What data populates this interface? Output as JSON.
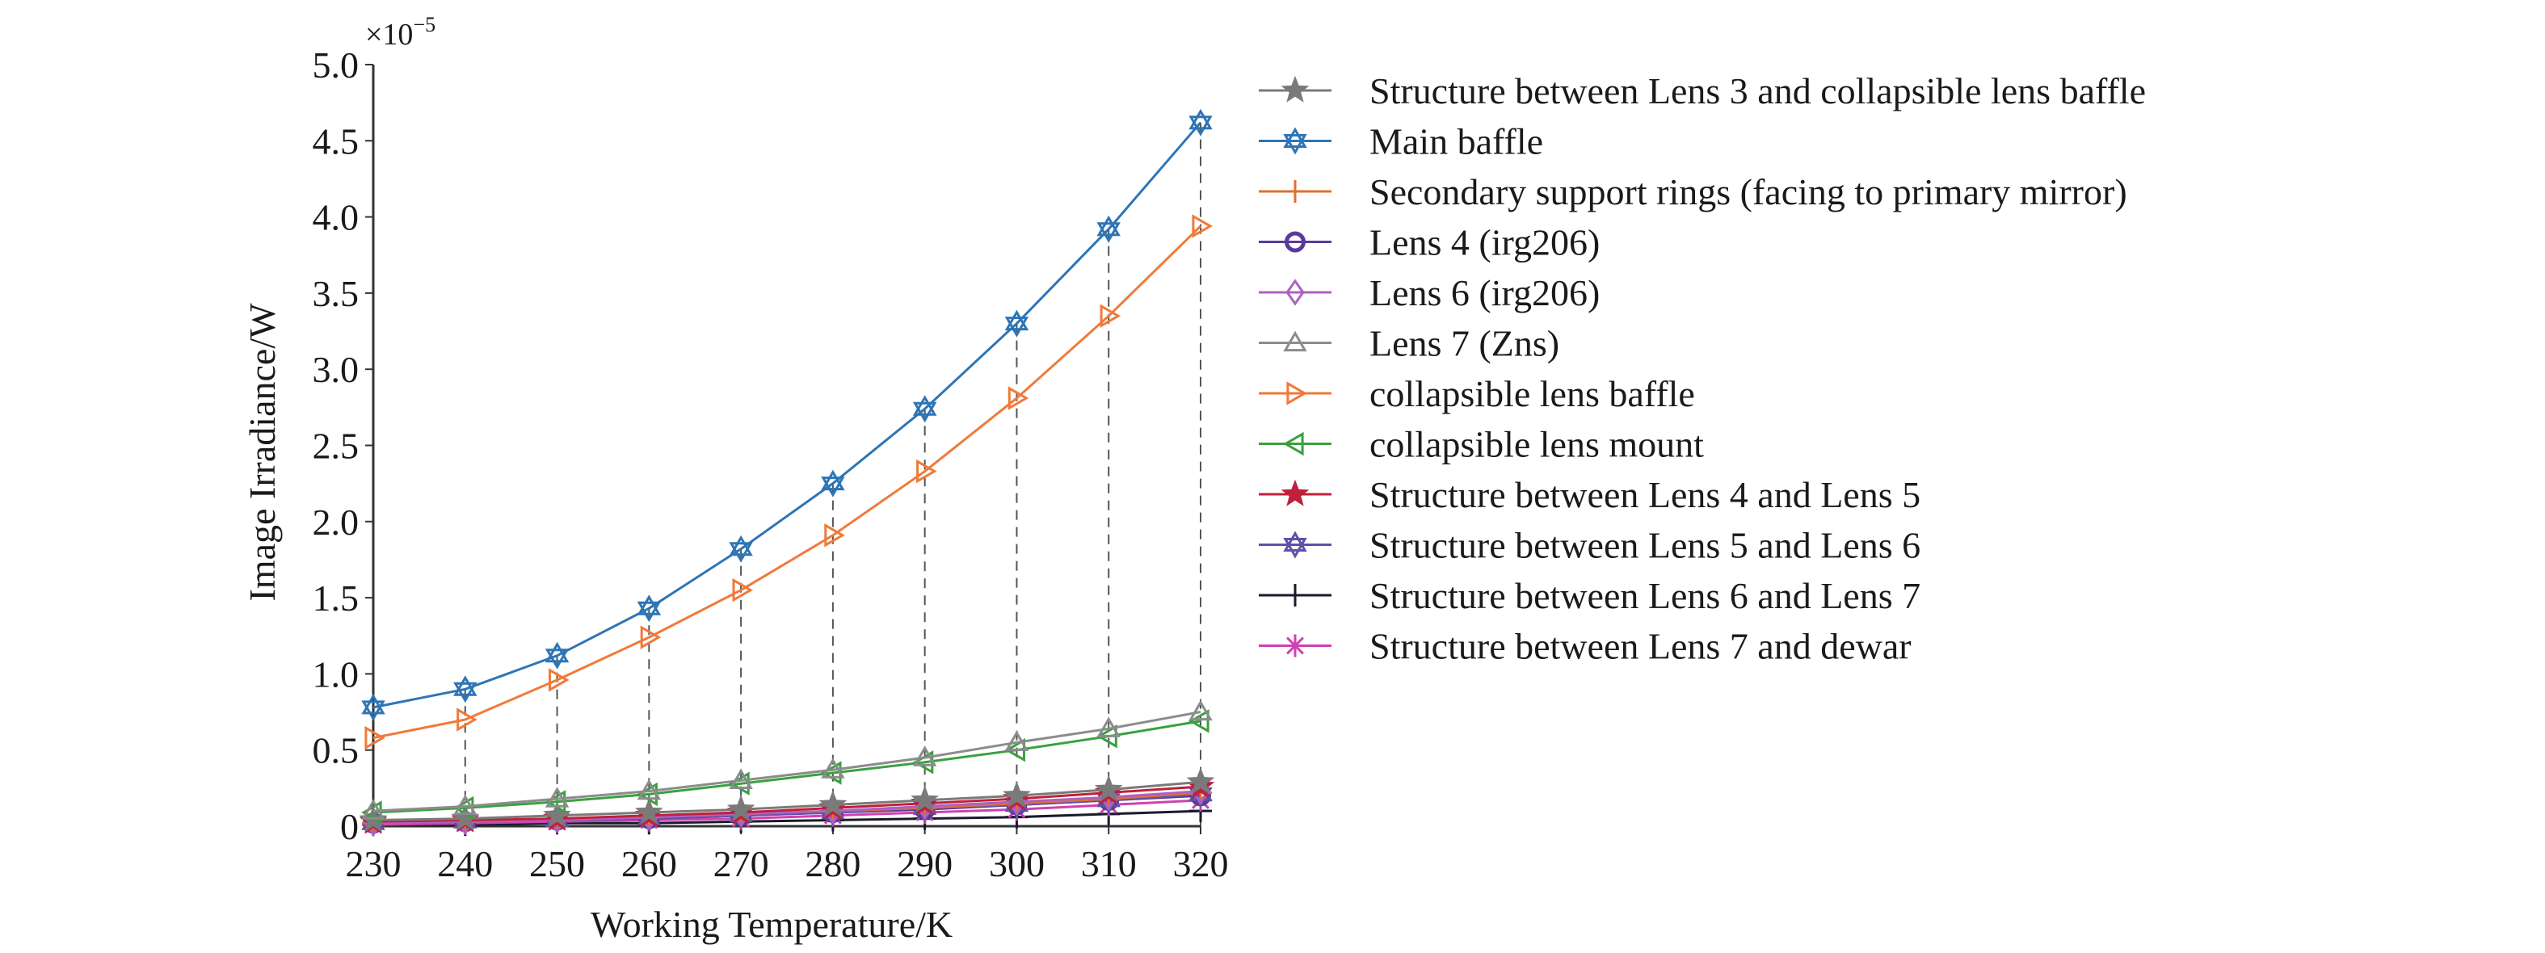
{
  "chart_data": {
    "type": "line",
    "title": "",
    "xlabel": "Working Temperature/K",
    "ylabel": "Image Irradiance/W",
    "y_multiplier": {
      "base": "×10",
      "exponent": "−5"
    },
    "x": [
      230,
      240,
      250,
      260,
      270,
      280,
      290,
      300,
      310,
      320
    ],
    "xlim": [
      230,
      320
    ],
    "ylim": [
      0,
      5.0
    ],
    "xticks": [
      "230",
      "240",
      "250",
      "260",
      "270",
      "280",
      "290",
      "300",
      "310",
      "320"
    ],
    "yticks": [
      "0",
      "0.5",
      "1.0",
      "1.5",
      "2.0",
      "2.5",
      "3.0",
      "3.5",
      "4.0",
      "4.5",
      "5.0"
    ],
    "grid": "dashed vertical drop lines from top curve at each x",
    "legend_position": "right",
    "series": [
      {
        "name": "Structure between Lens 3 and collapsible lens baffle",
        "marker": "star5",
        "color": "#7a7a7a",
        "values": [
          0.04,
          0.05,
          0.07,
          0.09,
          0.11,
          0.14,
          0.17,
          0.2,
          0.24,
          0.29
        ]
      },
      {
        "name": "Main baffle",
        "marker": "hexagram",
        "color": "#2e75b6",
        "values": [
          0.78,
          0.9,
          1.12,
          1.43,
          1.82,
          2.25,
          2.74,
          3.3,
          3.92,
          4.62
        ]
      },
      {
        "name": "Secondary support rings (facing to primary mirror)",
        "marker": "plus",
        "color": "#e07030",
        "values": [
          0.02,
          0.03,
          0.04,
          0.06,
          0.08,
          0.1,
          0.12,
          0.15,
          0.18,
          0.22
        ]
      },
      {
        "name": "Lens 4 (irg206)",
        "marker": "circle",
        "color": "#5a3a99",
        "values": [
          0.02,
          0.03,
          0.04,
          0.05,
          0.07,
          0.09,
          0.11,
          0.14,
          0.17,
          0.2
        ]
      },
      {
        "name": "Lens 6 (irg206)",
        "marker": "diamond",
        "color": "#b060c0",
        "values": [
          0.02,
          0.03,
          0.04,
          0.06,
          0.08,
          0.1,
          0.13,
          0.16,
          0.19,
          0.23
        ]
      },
      {
        "name": "Lens 7 (Zns)",
        "marker": "triangle-up",
        "color": "#8c8c8c",
        "values": [
          0.1,
          0.13,
          0.18,
          0.23,
          0.3,
          0.37,
          0.45,
          0.55,
          0.64,
          0.75
        ]
      },
      {
        "name": "collapsible lens baffle",
        "marker": "triangle-right",
        "color": "#f07a3a",
        "values": [
          0.58,
          0.7,
          0.96,
          1.24,
          1.55,
          1.91,
          2.33,
          2.81,
          3.35,
          3.94
        ]
      },
      {
        "name": "collapsible lens mount",
        "marker": "triangle-left",
        "color": "#3aa040",
        "values": [
          0.09,
          0.12,
          0.16,
          0.21,
          0.28,
          0.35,
          0.42,
          0.5,
          0.59,
          0.69
        ]
      },
      {
        "name": "Structure between Lens 4 and Lens 5",
        "marker": "star5-filled",
        "color": "#c0203a",
        "values": [
          0.03,
          0.04,
          0.05,
          0.07,
          0.09,
          0.12,
          0.15,
          0.18,
          0.22,
          0.26
        ]
      },
      {
        "name": "Structure between Lens 5 and Lens 6",
        "marker": "hexagram",
        "color": "#6050a8",
        "values": [
          0.02,
          0.03,
          0.04,
          0.05,
          0.07,
          0.09,
          0.12,
          0.14,
          0.17,
          0.21
        ]
      },
      {
        "name": "Structure between Lens 6 and Lens 7",
        "marker": "plus",
        "color": "#1a1a2e",
        "values": [
          0.01,
          0.01,
          0.02,
          0.02,
          0.03,
          0.04,
          0.05,
          0.06,
          0.08,
          0.1
        ]
      },
      {
        "name": "Structure between Lens 7 and dewar",
        "marker": "asterisk",
        "color": "#d040b0",
        "values": [
          0.01,
          0.02,
          0.03,
          0.04,
          0.05,
          0.07,
          0.09,
          0.11,
          0.14,
          0.17
        ]
      }
    ]
  }
}
